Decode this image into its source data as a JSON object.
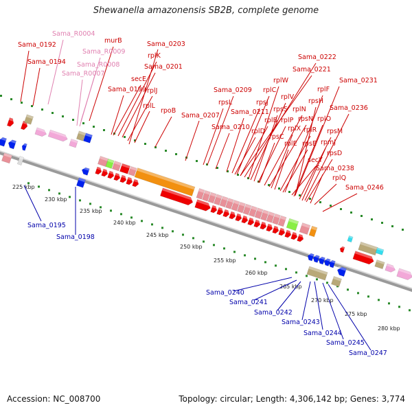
{
  "title": "Shewanella amazonensis SB2B, complete genome",
  "footer": {
    "accession": "Accession: NC_008700",
    "summary": "Topology: circular; Length: 4,306,142 bp; Genes: 3,774"
  },
  "colors": {
    "background": "#ffffff",
    "backbone": "#9a9a9a",
    "tick": "#2a8a2a",
    "label_fwd": "#cc0000",
    "label_rev": "#0000aa",
    "label_rna": "#e080b0",
    "cds_red": "#ee0000",
    "cds_pink": "#e89098",
    "cds_orange": "#f29010",
    "cds_green": "#88ee44",
    "cds_olive": "#b8a878",
    "cds_blue": "#0022ee",
    "cds_cyan": "#33ddee",
    "rna_pink": "#f2a8d8"
  },
  "axis": {
    "ticks_kbp": [
      "225 kbp",
      "230 kbp",
      "235 kbp",
      "240 kbp",
      "245 kbp",
      "250 kbp",
      "255 kbp",
      "260 kbp",
      "265 kbp",
      "270 kbp",
      "275 kbp",
      "280 kbp"
    ]
  },
  "labels_top": [
    "Sama_R0004",
    "Sama_0192",
    "murB",
    "Sama_0203",
    "Sama_R0009",
    "rplK",
    "Sama_0194",
    "Sama_R0008",
    "secE",
    "Sama_0201",
    "Sama_R0007",
    "Sama_0199",
    "rplJ",
    "rplL",
    "rpoB",
    "Sama_0222",
    "Sama_0221",
    "rplW",
    "rplC",
    "Sama_0209",
    "rplV",
    "rpsL",
    "rpsJ",
    "Sama_0211",
    "rpsS",
    "rplN",
    "rplB",
    "rpsN",
    "rplP",
    "rplD",
    "rplX",
    "rpsC",
    "rplR",
    "rplE",
    "rpsE",
    "secY",
    "Sama_0207",
    "Sama_0210",
    "Sama_0231",
    "rplF",
    "rpsH",
    "Sama_0236",
    "rplO",
    "rpsM",
    "rpmJ",
    "rpsD",
    "Sama_0238",
    "rplQ",
    "Sama_0246"
  ],
  "labels_bottom": [
    "Sama_0195",
    "Sama_0198",
    "Sama_0240",
    "Sama_0241",
    "Sama_0242",
    "Sama_0243",
    "Sama_0244",
    "Sama_0245",
    "Sama_0247"
  ]
}
